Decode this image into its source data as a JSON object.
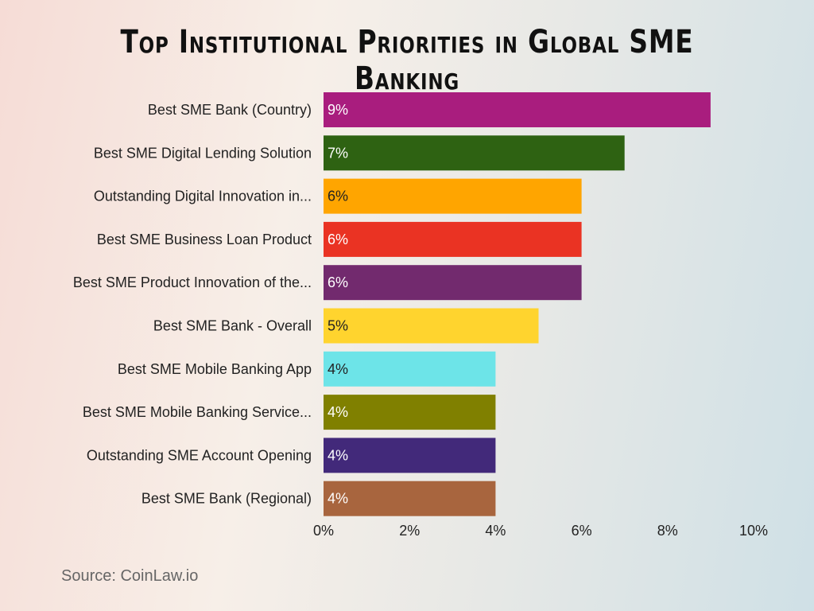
{
  "chart_data": {
    "type": "bar",
    "orientation": "horizontal",
    "title": "Top Institutional Priorities in Global SME Banking",
    "categories": [
      "Best SME Bank (Country)",
      "Best SME Digital Lending Solution",
      "Outstanding Digital Innovation in...",
      "Best SME Business Loan Product",
      "Best SME Product Innovation of the...",
      "Best SME Bank - Overall",
      "Best SME Mobile Banking App",
      "Best SME Mobile Banking Service...",
      "Outstanding SME Account Opening",
      "Best SME Bank (Regional)"
    ],
    "values": [
      9,
      7,
      6,
      6,
      6,
      5,
      4,
      4,
      4,
      4
    ],
    "data_labels": [
      "9%",
      "7%",
      "6%",
      "6%",
      "6%",
      "5%",
      "4%",
      "4%",
      "4%",
      "4%"
    ],
    "colors": [
      "#a91d7e",
      "#2e6212",
      "#ffa500",
      "#ea3323",
      "#722a6e",
      "#ffd42e",
      "#6de4e8",
      "#808000",
      "#42297a",
      "#a8653e"
    ],
    "label_colors": [
      "#ffffff",
      "#ffffff",
      "#222222",
      "#ffffff",
      "#ffffff",
      "#222222",
      "#222222",
      "#ffffff",
      "#ffffff",
      "#ffffff"
    ],
    "xlim": [
      0,
      10
    ],
    "xticks": [
      0,
      2,
      4,
      6,
      8,
      10
    ],
    "xtick_labels": [
      "0%",
      "2%",
      "4%",
      "6%",
      "8%",
      "10%"
    ],
    "xlabel": "",
    "ylabel": "",
    "grid": false
  },
  "source": "Source: CoinLaw.io"
}
